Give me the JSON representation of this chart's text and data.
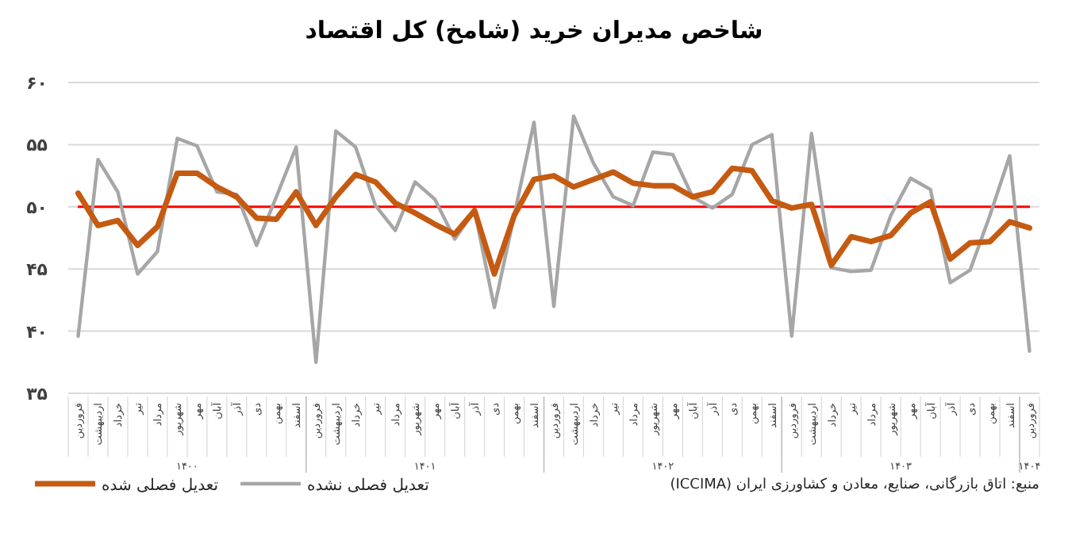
{
  "chart_data": {
    "type": "line",
    "title": "شاخص مدیران خرید (شامخ) کل اقتصاد",
    "categories": [
      "فروردین",
      "اردیبهشت",
      "خرداد",
      "تیر",
      "مرداد",
      "شهریور",
      "مهر",
      "آبان",
      "آذر",
      "دی",
      "بهمن",
      "اسفند",
      "فروردین",
      "اردیبهشت",
      "خرداد",
      "تیر",
      "مرداد",
      "شهریور",
      "مهر",
      "آبان",
      "آذر",
      "دی",
      "بهمن",
      "اسفند",
      "فروردین",
      "اردیبهشت",
      "خرداد",
      "تیر",
      "مرداد",
      "شهریور",
      "مهر",
      "آبان",
      "آذر",
      "دی",
      "بهمن",
      "اسفند",
      "فروردین",
      "اردیبهشت",
      "خرداد",
      "تیر",
      "مرداد",
      "شهریور",
      "مهر",
      "آبان",
      "آذر",
      "دی",
      "بهمن",
      "اسفند",
      "فروردین"
    ],
    "series": [
      {
        "name": "تعدیل فصلی شده",
        "color": "#c55a11",
        "values": [
          51.1,
          48.5,
          48.9,
          46.9,
          48.4,
          52.7,
          52.7,
          51.6,
          50.8,
          49.1,
          49.0,
          51.2,
          48.5,
          50.8,
          52.6,
          52.0,
          50.3,
          49.5,
          48.6,
          47.8,
          49.7,
          44.6,
          49.3,
          52.2,
          52.5,
          51.6,
          52.2,
          52.8,
          51.9,
          51.7,
          51.7,
          50.8,
          51.2,
          53.1,
          52.9,
          50.5,
          49.9,
          50.2,
          45.3,
          47.6,
          47.2,
          47.7,
          49.5,
          50.4,
          45.8,
          47.1,
          47.2,
          48.8,
          48.3
        ]
      },
      {
        "name": "تعدیل فصلی نشده",
        "color": "#a6a6a6",
        "values": [
          39.6,
          53.8,
          51.2,
          44.6,
          46.4,
          55.5,
          54.9,
          51.2,
          51.0,
          46.9,
          50.8,
          54.8,
          37.5,
          56.1,
          54.8,
          50.1,
          48.1,
          52.0,
          50.6,
          47.4,
          49.7,
          41.9,
          49.3,
          56.8,
          42.0,
          57.3,
          53.5,
          50.8,
          50.1,
          54.4,
          54.2,
          50.8,
          49.9,
          51.0,
          55.0,
          55.8,
          39.6,
          55.9,
          45.1,
          44.8,
          44.9,
          49.3,
          52.3,
          51.4,
          43.9,
          44.9,
          49.3,
          54.1,
          38.4
        ]
      }
    ],
    "ylim": [
      35,
      60
    ],
    "yticks": [
      {
        "value": 35,
        "label": "۳۵"
      },
      {
        "value": 40,
        "label": "۴۰"
      },
      {
        "value": 45,
        "label": "۴۵"
      },
      {
        "value": 50,
        "label": "۵۰"
      },
      {
        "value": 55,
        "label": "۵۵"
      },
      {
        "value": 60,
        "label": "۶۰"
      }
    ],
    "ref_lines": [
      {
        "axis": "y",
        "value": 50,
        "color": "#ff0000"
      }
    ],
    "grid": "y",
    "legend": "bottom left",
    "marker": "none",
    "line_style": "solid",
    "annotations": [
      "۱۴۰۰",
      "۱۴۰۱",
      "۱۴۰۲",
      "۱۴۰۳",
      "۱۴۰۴",
      "منبع: اتاق بازرگانی، صنایع، معادن و کشاورزی ایران (ICCIMA)"
    ]
  }
}
